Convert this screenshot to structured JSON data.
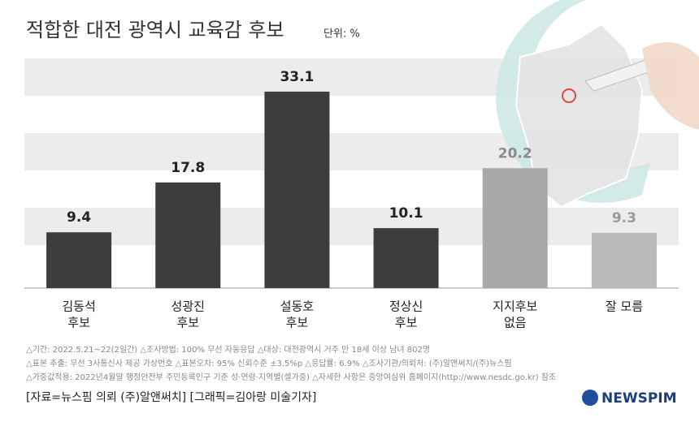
{
  "chart_data": {
    "type": "bar",
    "title": "적합한 대전 광역시 교육감 후보",
    "unit": "단위: %",
    "categories": [
      [
        "김동석",
        "후보"
      ],
      [
        "성광진",
        "후보"
      ],
      [
        "설동호",
        "후보"
      ],
      [
        "정상신",
        "후보"
      ],
      [
        "지지후보",
        "없음"
      ],
      [
        "잘 모름"
      ]
    ],
    "values": [
      9.4,
      17.8,
      33.1,
      10.1,
      20.2,
      9.3
    ],
    "colors": [
      "#3d3d3d",
      "#3d3d3d",
      "#3d3d3d",
      "#3d3d3d",
      "#a9a9a9",
      "#b9b9b9"
    ],
    "label_colors": [
      "#222222",
      "#222222",
      "#222222",
      "#222222",
      "#8a8a8a",
      "#9a9a9a"
    ],
    "ylim": [
      0,
      35
    ],
    "notes": [
      "△기간: 2022.5.21~22(2일간) △조사방법: 100% 무선 자동응답 △대상: 대전광역시 거주 만 18세 이상 남녀 802명",
      "△표본 추출: 무선 3사통신사 제공 가상번호 △표본오차: 95% 신뢰수준 ±3.5%p △응답률: 6.9% △조사기관/의뢰처: (주)알앤써치/(주)뉴스핌",
      "△가중값적용: 2022년4월말 행정안전부 주민등록인구 기준 성·연령·지역별(셀가중) △자세한 사항은 중앙여심위 홈페이지(http://www.nesdc.go.kr) 참조"
    ],
    "source": "[자료=뉴스핌 의뢰 (주)알앤써치] [그래픽=김아랑 미술기자]",
    "logo": "NEWSPIM"
  }
}
